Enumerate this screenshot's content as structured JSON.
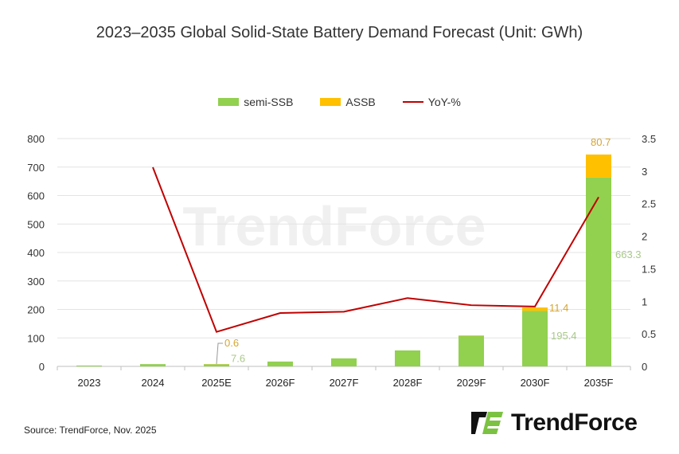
{
  "chart_data": {
    "type": "bar",
    "title": "2023–2035 Global Solid-State Battery Demand Forecast (Unit: GWh)",
    "categories": [
      "2023",
      "2024",
      "2025E",
      "2026F",
      "2027F",
      "2028F",
      "2029F",
      "2030F",
      "2035F"
    ],
    "stacked": true,
    "series": [
      {
        "name": "semi-SSB",
        "type": "bar",
        "axis": "left",
        "color": "#92D050",
        "values": [
          3,
          8,
          7.6,
          17,
          28,
          56,
          107,
          195.4,
          663.3
        ]
      },
      {
        "name": "ASSB",
        "type": "bar",
        "axis": "left",
        "color": "#FFC000",
        "values": [
          0,
          0,
          0.6,
          0,
          0,
          0,
          2,
          11.4,
          80.7
        ]
      },
      {
        "name": "YoY-%",
        "type": "line",
        "axis": "right",
        "color": "#C00000",
        "values": [
          null,
          3.06,
          0.53,
          0.82,
          0.84,
          1.05,
          0.94,
          0.92,
          2.6
        ]
      }
    ],
    "data_labels": [
      {
        "category": "2025E",
        "series": "ASSB",
        "text": "0.6"
      },
      {
        "category": "2025E",
        "series": "semi-SSB",
        "text": "7.6"
      },
      {
        "category": "2030F",
        "series": "ASSB",
        "text": "11.4"
      },
      {
        "category": "2030F",
        "series": "semi-SSB",
        "text": "195.4"
      },
      {
        "category": "2035F",
        "series": "ASSB",
        "text": "80.7"
      },
      {
        "category": "2035F",
        "series": "semi-SSB",
        "text": "663.3"
      }
    ],
    "ylim": [
      0,
      800
    ],
    "yticks": [
      "0",
      "100",
      "200",
      "300",
      "400",
      "500",
      "600",
      "700",
      "800"
    ],
    "y2lim": [
      0,
      3.5
    ],
    "y2ticks": [
      "0",
      "0.5",
      "1",
      "1.5",
      "2",
      "2.5",
      "3",
      "3.5"
    ],
    "grid": true,
    "legend_position": "top"
  },
  "source": "Source: TrendForce, Nov. 2025",
  "logo_text": "TrendForce",
  "watermark_text": "TrendForce"
}
